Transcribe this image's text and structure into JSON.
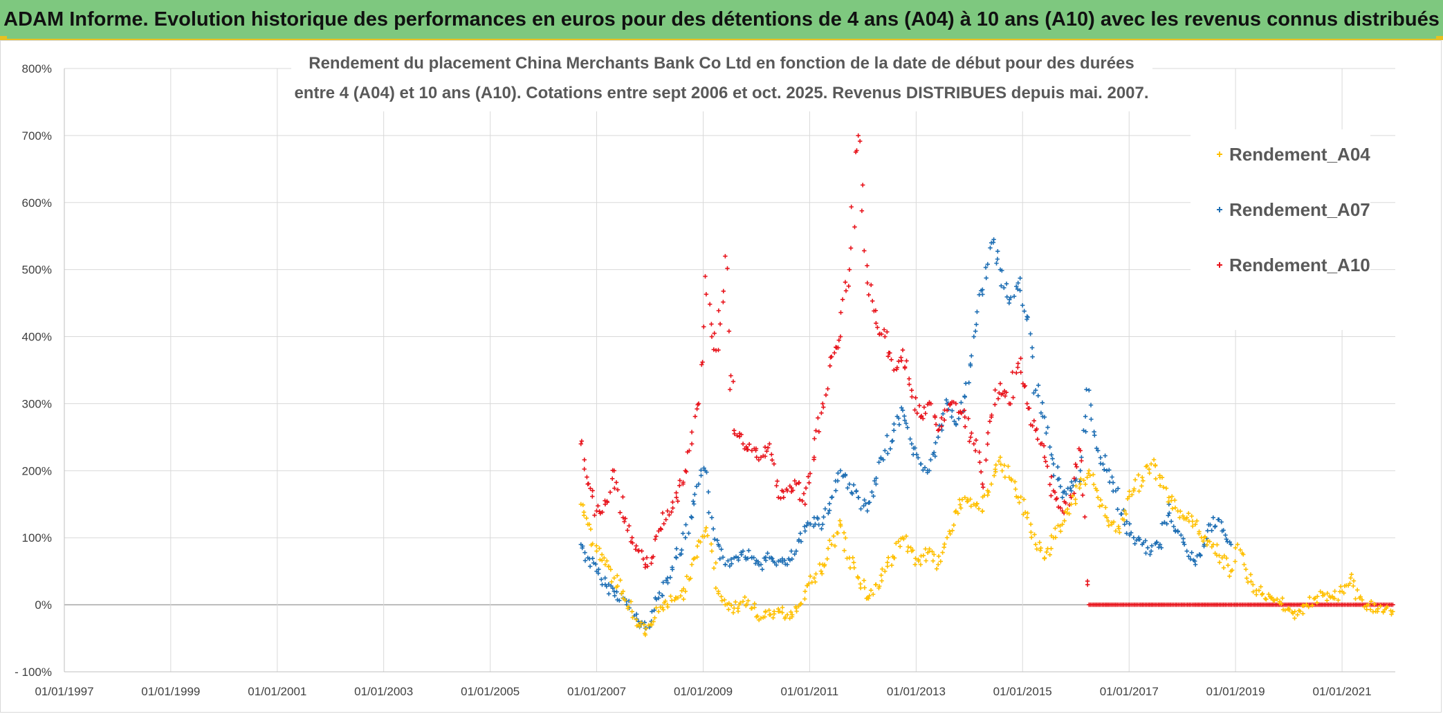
{
  "banner": {
    "title": "ADAM Informe. Evolution historique des performances en euros pour des détentions de 4 ans (A04) à 10 ans (A10) avec les revenus connus distribués"
  },
  "chart_data": {
    "type": "scatter",
    "title_lines": [
      "Rendement du placement China Merchants Bank Co Ltd en fonction de la date de début pour des durées",
      "entre 4 (A04) et 10 ans (A10). Cotations entre sept 2006 et oct. 2025. Revenus DISTRIBUES depuis mai. 2007."
    ],
    "xlabel": "",
    "ylabel": "",
    "x_ticks": [
      "01/01/1997",
      "01/01/1999",
      "01/01/2001",
      "01/01/2003",
      "01/01/2005",
      "01/01/2007",
      "01/01/2009",
      "01/01/2011",
      "01/01/2013",
      "01/01/2015",
      "01/01/2017",
      "01/01/2019",
      "01/01/2021"
    ],
    "xlim": [
      "1997-01-01",
      "2022-01-01"
    ],
    "y_ticks": [
      "- 100%",
      "0%",
      "100%",
      "200%",
      "300%",
      "400%",
      "500%",
      "600%",
      "700%",
      "800%"
    ],
    "ylim": [
      -100,
      800
    ],
    "grid": true,
    "legend_position": "top-right",
    "marker": "+",
    "series": [
      {
        "name": "Rendement_A04",
        "color": "#ffc000",
        "points": [
          [
            "2006-09-15",
            150
          ],
          [
            "2006-11-01",
            120
          ],
          [
            "2007-01-01",
            80
          ],
          [
            "2007-03-01",
            60
          ],
          [
            "2007-05-01",
            40
          ],
          [
            "2007-07-01",
            20
          ],
          [
            "2007-09-01",
            -10
          ],
          [
            "2007-10-15",
            -30
          ],
          [
            "2007-12-01",
            -45
          ],
          [
            "2008-01-15",
            -30
          ],
          [
            "2008-03-01",
            -10
          ],
          [
            "2008-05-01",
            0
          ],
          [
            "2008-07-01",
            10
          ],
          [
            "2008-09-01",
            20
          ],
          [
            "2008-10-15",
            60
          ],
          [
            "2008-12-01",
            95
          ],
          [
            "2009-01-15",
            110
          ],
          [
            "2009-03-01",
            80
          ],
          [
            "2009-04-15",
            20
          ],
          [
            "2009-06-01",
            0
          ],
          [
            "2009-08-01",
            -5
          ],
          [
            "2009-10-01",
            5
          ],
          [
            "2009-12-01",
            -5
          ],
          [
            "2010-02-01",
            -20
          ],
          [
            "2010-04-01",
            -15
          ],
          [
            "2010-06-01",
            -10
          ],
          [
            "2010-08-01",
            -15
          ],
          [
            "2010-10-01",
            -5
          ],
          [
            "2010-12-01",
            20
          ],
          [
            "2011-02-01",
            40
          ],
          [
            "2011-04-01",
            60
          ],
          [
            "2011-06-01",
            90
          ],
          [
            "2011-08-01",
            120
          ],
          [
            "2011-10-01",
            70
          ],
          [
            "2011-12-01",
            40
          ],
          [
            "2012-02-01",
            10
          ],
          [
            "2012-04-01",
            30
          ],
          [
            "2012-06-01",
            50
          ],
          [
            "2012-08-01",
            70
          ],
          [
            "2012-10-01",
            100
          ],
          [
            "2012-12-01",
            80
          ],
          [
            "2013-02-01",
            60
          ],
          [
            "2013-04-01",
            80
          ],
          [
            "2013-06-01",
            60
          ],
          [
            "2013-08-01",
            100
          ],
          [
            "2013-10-01",
            140
          ],
          [
            "2013-12-01",
            160
          ],
          [
            "2014-02-01",
            150
          ],
          [
            "2014-04-01",
            140
          ],
          [
            "2014-06-01",
            180
          ],
          [
            "2014-08-01",
            220
          ],
          [
            "2014-10-01",
            190
          ],
          [
            "2014-12-01",
            160
          ],
          [
            "2015-02-01",
            130
          ],
          [
            "2015-04-01",
            90
          ],
          [
            "2015-06-01",
            70
          ],
          [
            "2015-08-01",
            100
          ],
          [
            "2015-10-01",
            120
          ],
          [
            "2015-12-01",
            150
          ],
          [
            "2016-02-01",
            180
          ],
          [
            "2016-04-01",
            200
          ],
          [
            "2016-06-01",
            160
          ],
          [
            "2016-08-01",
            130
          ],
          [
            "2016-10-01",
            110
          ],
          [
            "2016-12-01",
            140
          ],
          [
            "2017-02-01",
            170
          ],
          [
            "2017-04-01",
            190
          ],
          [
            "2017-06-01",
            210
          ],
          [
            "2017-08-01",
            190
          ],
          [
            "2017-10-01",
            160
          ],
          [
            "2017-12-01",
            140
          ],
          [
            "2018-02-01",
            130
          ],
          [
            "2018-04-01",
            120
          ],
          [
            "2018-06-01",
            100
          ],
          [
            "2018-08-01",
            90
          ],
          [
            "2018-10-01",
            70
          ],
          [
            "2018-12-01",
            50
          ],
          [
            "2019-01-15",
            90
          ],
          [
            "2019-03-01",
            60
          ],
          [
            "2019-05-01",
            30
          ],
          [
            "2019-07-01",
            15
          ],
          [
            "2019-09-01",
            10
          ],
          [
            "2019-11-01",
            5
          ],
          [
            "2020-01-01",
            -5
          ],
          [
            "2020-03-01",
            -15
          ],
          [
            "2020-05-01",
            0
          ],
          [
            "2020-07-01",
            10
          ],
          [
            "2020-09-01",
            15
          ],
          [
            "2020-11-01",
            10
          ],
          [
            "2021-01-01",
            20
          ],
          [
            "2021-03-01",
            40
          ],
          [
            "2021-05-01",
            10
          ],
          [
            "2021-07-01",
            0
          ],
          [
            "2021-09-01",
            -10
          ],
          [
            "2021-11-01",
            -5
          ],
          [
            "2021-12-15",
            -10
          ]
        ]
      },
      {
        "name": "Rendement_A07",
        "color": "#1f6fb4",
        "points": [
          [
            "2006-09-15",
            90
          ],
          [
            "2006-11-01",
            70
          ],
          [
            "2007-01-01",
            50
          ],
          [
            "2007-03-01",
            30
          ],
          [
            "2007-05-01",
            20
          ],
          [
            "2007-07-01",
            10
          ],
          [
            "2007-09-01",
            -10
          ],
          [
            "2007-10-15",
            -25
          ],
          [
            "2007-12-01",
            -35
          ],
          [
            "2008-01-15",
            -10
          ],
          [
            "2008-03-01",
            10
          ],
          [
            "2008-05-01",
            40
          ],
          [
            "2008-07-01",
            70
          ],
          [
            "2008-09-01",
            100
          ],
          [
            "2008-10-15",
            130
          ],
          [
            "2008-12-01",
            180
          ],
          [
            "2009-01-15",
            200
          ],
          [
            "2009-03-01",
            130
          ],
          [
            "2009-04-15",
            90
          ],
          [
            "2009-06-01",
            60
          ],
          [
            "2009-08-01",
            70
          ],
          [
            "2009-10-01",
            80
          ],
          [
            "2009-12-01",
            70
          ],
          [
            "2010-02-01",
            60
          ],
          [
            "2010-04-01",
            70
          ],
          [
            "2010-06-01",
            65
          ],
          [
            "2010-08-01",
            60
          ],
          [
            "2010-10-01",
            80
          ],
          [
            "2010-12-01",
            110
          ],
          [
            "2011-02-01",
            130
          ],
          [
            "2011-04-01",
            120
          ],
          [
            "2011-06-01",
            160
          ],
          [
            "2011-08-01",
            200
          ],
          [
            "2011-10-01",
            180
          ],
          [
            "2011-12-01",
            160
          ],
          [
            "2012-02-01",
            140
          ],
          [
            "2012-04-01",
            180
          ],
          [
            "2012-06-01",
            230
          ],
          [
            "2012-08-01",
            260
          ],
          [
            "2012-10-01",
            290
          ],
          [
            "2012-12-01",
            240
          ],
          [
            "2013-02-01",
            210
          ],
          [
            "2013-04-01",
            200
          ],
          [
            "2013-06-01",
            250
          ],
          [
            "2013-08-01",
            300
          ],
          [
            "2013-10-01",
            270
          ],
          [
            "2013-12-01",
            310
          ],
          [
            "2014-02-01",
            400
          ],
          [
            "2014-04-01",
            470
          ],
          [
            "2014-06-01",
            540
          ],
          [
            "2014-08-01",
            500
          ],
          [
            "2014-10-01",
            450
          ],
          [
            "2014-12-01",
            480
          ],
          [
            "2015-02-01",
            430
          ],
          [
            "2015-04-01",
            320
          ],
          [
            "2015-06-01",
            280
          ],
          [
            "2015-08-01",
            210
          ],
          [
            "2015-10-01",
            160
          ],
          [
            "2015-12-01",
            170
          ],
          [
            "2016-02-01",
            200
          ],
          [
            "2016-04-01",
            320
          ],
          [
            "2016-06-01",
            230
          ],
          [
            "2016-08-01",
            200
          ],
          [
            "2016-10-01",
            170
          ],
          [
            "2016-12-01",
            120
          ],
          [
            "2017-02-01",
            100
          ],
          [
            "2017-04-01",
            90
          ],
          [
            "2017-06-01",
            80
          ],
          [
            "2017-08-01",
            90
          ],
          [
            "2017-10-01",
            150
          ],
          [
            "2017-12-01",
            110
          ],
          [
            "2018-02-01",
            80
          ],
          [
            "2018-04-01",
            60
          ],
          [
            "2018-06-01",
            90
          ],
          [
            "2018-08-01",
            130
          ],
          [
            "2018-10-01",
            110
          ],
          [
            "2018-12-01",
            90
          ]
        ]
      },
      {
        "name": "Rendement_A10",
        "color": "#e8141c",
        "points": [
          [
            "2006-09-15",
            240
          ],
          [
            "2006-11-01",
            180
          ],
          [
            "2007-01-01",
            140
          ],
          [
            "2007-03-01",
            150
          ],
          [
            "2007-05-01",
            200
          ],
          [
            "2007-07-01",
            130
          ],
          [
            "2007-09-01",
            100
          ],
          [
            "2007-10-15",
            80
          ],
          [
            "2007-12-01",
            60
          ],
          [
            "2008-01-15",
            70
          ],
          [
            "2008-03-01",
            110
          ],
          [
            "2008-05-01",
            140
          ],
          [
            "2008-07-01",
            160
          ],
          [
            "2008-09-01",
            200
          ],
          [
            "2008-10-15",
            240
          ],
          [
            "2008-12-01",
            300
          ],
          [
            "2009-01-15",
            490
          ],
          [
            "2009-03-01",
            400
          ],
          [
            "2009-04-15",
            380
          ],
          [
            "2009-06-01",
            520
          ],
          [
            "2009-08-01",
            260
          ],
          [
            "2009-10-01",
            240
          ],
          [
            "2009-12-01",
            230
          ],
          [
            "2010-02-01",
            220
          ],
          [
            "2010-04-01",
            240
          ],
          [
            "2010-06-01",
            160
          ],
          [
            "2010-08-01",
            170
          ],
          [
            "2010-10-01",
            180
          ],
          [
            "2010-12-01",
            150
          ],
          [
            "2011-02-01",
            220
          ],
          [
            "2011-04-01",
            300
          ],
          [
            "2011-06-01",
            370
          ],
          [
            "2011-08-01",
            400
          ],
          [
            "2011-10-01",
            500
          ],
          [
            "2011-12-01",
            700
          ],
          [
            "2012-02-01",
            480
          ],
          [
            "2012-04-01",
            420
          ],
          [
            "2012-06-01",
            400
          ],
          [
            "2012-08-01",
            350
          ],
          [
            "2012-10-01",
            380
          ],
          [
            "2012-12-01",
            320
          ],
          [
            "2013-02-01",
            280
          ],
          [
            "2013-04-01",
            300
          ],
          [
            "2013-06-01",
            260
          ],
          [
            "2013-08-01",
            290
          ],
          [
            "2013-10-01",
            300
          ],
          [
            "2013-12-01",
            280
          ],
          [
            "2014-02-01",
            240
          ],
          [
            "2014-04-01",
            180
          ],
          [
            "2014-06-01",
            280
          ],
          [
            "2014-08-01",
            330
          ],
          [
            "2014-10-01",
            300
          ],
          [
            "2014-12-01",
            360
          ],
          [
            "2015-02-01",
            300
          ],
          [
            "2015-04-01",
            260
          ],
          [
            "2015-06-01",
            220
          ],
          [
            "2015-08-01",
            170
          ],
          [
            "2015-10-01",
            140
          ],
          [
            "2015-12-01",
            160
          ],
          [
            "2016-02-01",
            230
          ],
          [
            "2016-04-01",
            0
          ],
          [
            "2016-10-01",
            0
          ],
          [
            "2017-04-01",
            0
          ],
          [
            "2017-10-01",
            0
          ],
          [
            "2018-04-01",
            0
          ],
          [
            "2018-10-01",
            0
          ],
          [
            "2019-04-01",
            0
          ],
          [
            "2019-10-01",
            0
          ],
          [
            "2020-04-01",
            0
          ],
          [
            "2020-10-01",
            0
          ],
          [
            "2021-04-01",
            0
          ],
          [
            "2021-10-01",
            0
          ],
          [
            "2021-12-15",
            0
          ]
        ]
      }
    ]
  }
}
